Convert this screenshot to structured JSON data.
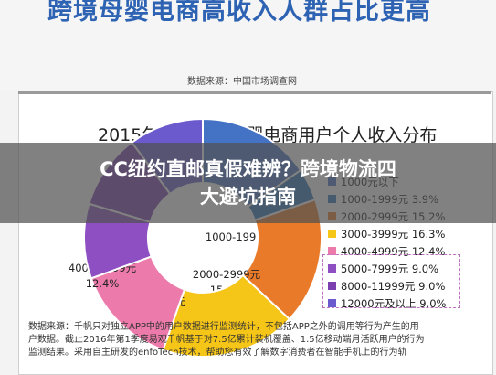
{
  "header": {
    "title": "跨境母婴电商高收入人群占比更高",
    "source": "数据来源：中国市场调查网"
  },
  "banner": {
    "line1": "CC纽约直邮真假难辨？跨境物流四",
    "line2": "大避坑指南"
  },
  "footer": {
    "line1": "数据来源：千帆只对独立APP中的用户数据进行监测统计，不包括APP之外的调用等行为产生的用",
    "line2": "户数据。截止2016年第1季度易观千帆基于对7.5亿累计装机覆盖、1.5亿移动端月活跃用户的行为",
    "line3": "监测结果。采用自主研发的enfoTech技术，帮助您有效了解数字消费者在智能手机上的行为轨"
  },
  "chart_data": {
    "type": "pie",
    "title": "2015年中国跨境母婴电商用户个人收入分布",
    "categories": [
      "1000元以下",
      "1000-1999元",
      "2000-2999元",
      "3000-3999元",
      "4000-4999元",
      "5000-7999元",
      "8000-11999元",
      "12000元及以上"
    ],
    "values": [
      13.6,
      3.9,
      15.2,
      16.3,
      12.4,
      9.0,
      9.0,
      9.0
    ],
    "legend_labels": [
      "1000元以下",
      "1000-1999元  3.9%",
      "2000-2999元  15.2%",
      "3000-3999元  16.3%",
      "4000-4999元  12.4%",
      "5000-7999元  9.0%",
      "8000-11999元  9.0%",
      "12000元及以上  9.0%"
    ],
    "slice_labels": [
      {
        "line1": "",
        "line2": ""
      },
      {
        "line1": "1000-1999元",
        "line2": ""
      },
      {
        "line1": "2000-2999元",
        "line2": "15.2%"
      },
      {
        "line1": "3000-3999元",
        "line2": "16.3%"
      },
      {
        "line1": "4000-4999元",
        "line2": "12.4%"
      },
      {
        "line1": "",
        "line2": ""
      },
      {
        "line1": "",
        "line2": ""
      },
      {
        "line1": "",
        "line2": ""
      }
    ],
    "colors": [
      "#4472c4",
      "#2e75b6",
      "#e97a2a",
      "#f5c518",
      "#ec7bab",
      "#8e4fc2",
      "#7b3fb0",
      "#6a5acd"
    ],
    "legend_placement": "right",
    "start_angle_deg": 90,
    "direction": "clockwise"
  }
}
